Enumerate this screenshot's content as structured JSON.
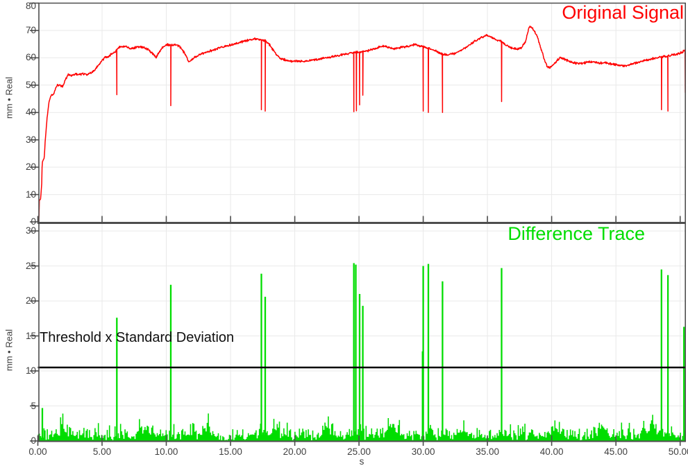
{
  "ui": {
    "background": "#ffffff",
    "axis_color": "#4d4d4d",
    "grid_color": "#e9e9e9",
    "tick_label_color": "#3f3f3f",
    "x_unit": "s"
  },
  "chart_data": [
    {
      "type": "line",
      "title": "Original Signal",
      "title_color": "#ff0000",
      "series_color": "#ff0000",
      "ylabel": "mm • Real",
      "xlabel": "s",
      "xlim": [
        0,
        50.45
      ],
      "ylim": [
        0,
        80
      ],
      "grid": true,
      "legend_position": "top-right-inside",
      "y_ticks": [
        "0",
        "10",
        "20",
        "30",
        "40",
        "50",
        "60",
        "70",
        "80"
      ],
      "y_tick_values": [
        0,
        10,
        20,
        30,
        40,
        50,
        60,
        70,
        80
      ],
      "x_tick_values": [
        0,
        5,
        10,
        15,
        20,
        25,
        30,
        35,
        40,
        45,
        50
      ],
      "x_tick_labels": [
        "0.00",
        "5.00",
        "10.00",
        "15.00",
        "20.00",
        "25.00",
        "30.00",
        "35.00",
        "40.00",
        "45.00",
        "50.00"
      ],
      "noise_amplitude": 0.5,
      "keypoints": [
        [
          0,
          0
        ],
        [
          0.08,
          0.6
        ],
        [
          0.12,
          7.8
        ],
        [
          0.22,
          8.4
        ],
        [
          0.3,
          14
        ],
        [
          0.34,
          22
        ],
        [
          0.42,
          22.6
        ],
        [
          0.5,
          23.4
        ],
        [
          0.58,
          30
        ],
        [
          0.72,
          38
        ],
        [
          0.88,
          44.2
        ],
        [
          1.05,
          46.4
        ],
        [
          1.25,
          47
        ],
        [
          1.5,
          50.2
        ],
        [
          1.75,
          49.9
        ],
        [
          1.95,
          49.6
        ],
        [
          2.15,
          52
        ],
        [
          2.35,
          53.7
        ],
        [
          2.65,
          53.5
        ],
        [
          2.95,
          54.2
        ],
        [
          3.25,
          53.8
        ],
        [
          3.55,
          54.2
        ],
        [
          3.85,
          53.9
        ],
        [
          4.1,
          54.3
        ],
        [
          4.4,
          55.4
        ],
        [
          4.7,
          57.2
        ],
        [
          5.0,
          58.8
        ],
        [
          5.2,
          60
        ],
        [
          5.5,
          60.6
        ],
        [
          5.8,
          61.5
        ],
        [
          6.0,
          62.2
        ],
        [
          6.15,
          63
        ],
        [
          6.35,
          63.8
        ],
        [
          6.6,
          64.3
        ],
        [
          6.9,
          64
        ],
        [
          7.2,
          63.2
        ],
        [
          7.5,
          63.6
        ],
        [
          7.8,
          64.2
        ],
        [
          8.1,
          64
        ],
        [
          8.4,
          63.4
        ],
        [
          8.7,
          62.6
        ],
        [
          9.0,
          61.3
        ],
        [
          9.2,
          60
        ],
        [
          9.45,
          62
        ],
        [
          9.7,
          63.8
        ],
        [
          10.0,
          64.8
        ],
        [
          10.35,
          64.6
        ],
        [
          10.7,
          64.9
        ],
        [
          11.0,
          64.3
        ],
        [
          11.3,
          62.6
        ],
        [
          11.55,
          60.5
        ],
        [
          11.75,
          58.4
        ],
        [
          12.0,
          59.2
        ],
        [
          12.3,
          60.4
        ],
        [
          12.7,
          61.4
        ],
        [
          13.1,
          62.1
        ],
        [
          13.5,
          62.6
        ],
        [
          13.9,
          63.2
        ],
        [
          14.3,
          63.8
        ],
        [
          14.7,
          64.3
        ],
        [
          15.1,
          64.8
        ],
        [
          15.5,
          65.3
        ],
        [
          16.0,
          66
        ],
        [
          16.5,
          66.5
        ],
        [
          17.05,
          67
        ],
        [
          17.4,
          66.6
        ],
        [
          17.7,
          66.2
        ],
        [
          18.0,
          65
        ],
        [
          18.3,
          63
        ],
        [
          18.6,
          61
        ],
        [
          18.9,
          59.8
        ],
        [
          19.2,
          59.2
        ],
        [
          19.5,
          59
        ],
        [
          19.8,
          58.8
        ],
        [
          20.1,
          58.9
        ],
        [
          20.4,
          58.7
        ],
        [
          20.8,
          58.6
        ],
        [
          21.2,
          59
        ],
        [
          21.6,
          59.3
        ],
        [
          22.0,
          59.6
        ],
        [
          22.5,
          60
        ],
        [
          23.0,
          60.4
        ],
        [
          23.5,
          60.9
        ],
        [
          24.0,
          61.4
        ],
        [
          24.5,
          61.9
        ],
        [
          25.0,
          62.1
        ],
        [
          25.3,
          62.2
        ],
        [
          25.7,
          62.5
        ],
        [
          26.1,
          63.1
        ],
        [
          26.5,
          63.9
        ],
        [
          26.8,
          64.3
        ],
        [
          27.1,
          64.1
        ],
        [
          27.4,
          63.7
        ],
        [
          27.7,
          63.4
        ],
        [
          28.0,
          63.6
        ],
        [
          28.4,
          63.9
        ],
        [
          28.8,
          64.2
        ],
        [
          29.3,
          64.9
        ],
        [
          29.7,
          64.4
        ],
        [
          30.0,
          64
        ],
        [
          30.4,
          63.6
        ],
        [
          30.8,
          62.9
        ],
        [
          31.2,
          62
        ],
        [
          31.5,
          61.3
        ],
        [
          31.9,
          61.1
        ],
        [
          32.3,
          61.4
        ],
        [
          32.7,
          62
        ],
        [
          33.0,
          62.9
        ],
        [
          33.4,
          64
        ],
        [
          33.8,
          65.3
        ],
        [
          34.2,
          66.6
        ],
        [
          34.6,
          67.6
        ],
        [
          34.9,
          68.2
        ],
        [
          35.2,
          67.7
        ],
        [
          35.5,
          67
        ],
        [
          35.8,
          66.4
        ],
        [
          36.1,
          66
        ],
        [
          36.4,
          64.8
        ],
        [
          36.8,
          63.8
        ],
        [
          37.1,
          63.3
        ],
        [
          37.4,
          63.2
        ],
        [
          37.7,
          64
        ],
        [
          37.95,
          65.8
        ],
        [
          38.1,
          68.5
        ],
        [
          38.25,
          71.6
        ],
        [
          38.45,
          71
        ],
        [
          38.6,
          70.2
        ],
        [
          38.9,
          67.5
        ],
        [
          39.2,
          63
        ],
        [
          39.45,
          59
        ],
        [
          39.65,
          56.8
        ],
        [
          39.85,
          56.3
        ],
        [
          40.1,
          57.2
        ],
        [
          40.35,
          58.6
        ],
        [
          40.6,
          59.9
        ],
        [
          40.9,
          59.8
        ],
        [
          41.1,
          59.3
        ],
        [
          41.45,
          58.5
        ],
        [
          41.8,
          58.1
        ],
        [
          42.1,
          57.8
        ],
        [
          42.4,
          58
        ],
        [
          42.7,
          58.4
        ],
        [
          43.1,
          58.5
        ],
        [
          43.5,
          58.3
        ],
        [
          43.9,
          58.1
        ],
        [
          44.35,
          58
        ],
        [
          44.8,
          57.7
        ],
        [
          45.2,
          57.4
        ],
        [
          45.7,
          57.1
        ],
        [
          46.1,
          57.5
        ],
        [
          46.5,
          58
        ],
        [
          46.9,
          58.5
        ],
        [
          47.3,
          59
        ],
        [
          47.7,
          59.5
        ],
        [
          48.1,
          60
        ],
        [
          48.5,
          60.3
        ],
        [
          48.9,
          60.6
        ],
        [
          49.3,
          60.9
        ],
        [
          49.7,
          61.2
        ],
        [
          50.0,
          61.6
        ],
        [
          50.25,
          62.3
        ],
        [
          50.45,
          63
        ]
      ],
      "dropout_spikes": [
        [
          6.15,
          46.5
        ],
        [
          10.35,
          42.5
        ],
        [
          17.4,
          41
        ],
        [
          17.7,
          40.5
        ],
        [
          24.6,
          40.3
        ],
        [
          24.8,
          40.6
        ],
        [
          25.05,
          42.8
        ],
        [
          25.3,
          46.3
        ],
        [
          30.0,
          40.5
        ],
        [
          30.4,
          40
        ],
        [
          31.5,
          40
        ],
        [
          36.1,
          44
        ],
        [
          48.55,
          41
        ],
        [
          49.05,
          40.5
        ],
        [
          50.4,
          47.3
        ]
      ]
    },
    {
      "type": "line",
      "title": "Difference Trace",
      "title_color": "#00dd00",
      "series_color": "#00dd00",
      "ylabel": "mm • Real",
      "xlabel": "s",
      "xlim": [
        0,
        50.45
      ],
      "ylim": [
        0,
        31
      ],
      "grid": true,
      "legend_position": "top-right-inside",
      "y_ticks": [
        "0",
        "5",
        "10",
        "15",
        "20",
        "25",
        "30"
      ],
      "y_tick_values": [
        0,
        5,
        10,
        15,
        20,
        25,
        30
      ],
      "x_tick_values": [
        0,
        5,
        10,
        15,
        20,
        25,
        30,
        35,
        40,
        45,
        50
      ],
      "x_tick_labels": [
        "0.00",
        "5.00",
        "10.00",
        "15.00",
        "20.00",
        "25.00",
        "30.00",
        "35.00",
        "40.00",
        "45.00",
        "50.00"
      ],
      "baseline_noise": {
        "typical": 1.2,
        "max": 4.5,
        "bumps": [
          [
            2.0,
            2.6
          ],
          [
            8.3,
            2.9
          ],
          [
            13.2,
            3.0
          ],
          [
            18.4,
            2.7
          ],
          [
            22.6,
            3.3
          ],
          [
            27.5,
            3.0
          ],
          [
            33.0,
            2.6
          ],
          [
            40.2,
            2.8
          ],
          [
            44.0,
            2.5
          ],
          [
            47.6,
            3.1
          ]
        ]
      },
      "spikes": [
        [
          0.35,
          4.7
        ],
        [
          6.15,
          17.6
        ],
        [
          10.35,
          22.3
        ],
        [
          17.4,
          23.9
        ],
        [
          17.7,
          20.6
        ],
        [
          24.6,
          25.4
        ],
        [
          24.75,
          25.2
        ],
        [
          25.05,
          21.0
        ],
        [
          25.3,
          19.3
        ],
        [
          29.95,
          12.8
        ],
        [
          30.0,
          25.0
        ],
        [
          30.4,
          25.3
        ],
        [
          31.5,
          22.8
        ],
        [
          36.1,
          24.7
        ],
        [
          48.55,
          24.5
        ],
        [
          49.05,
          23.7
        ],
        [
          50.3,
          16.3
        ]
      ],
      "threshold": {
        "value": 10.5,
        "label": "Threshold x Standard Deviation",
        "color": "#000000"
      }
    }
  ]
}
